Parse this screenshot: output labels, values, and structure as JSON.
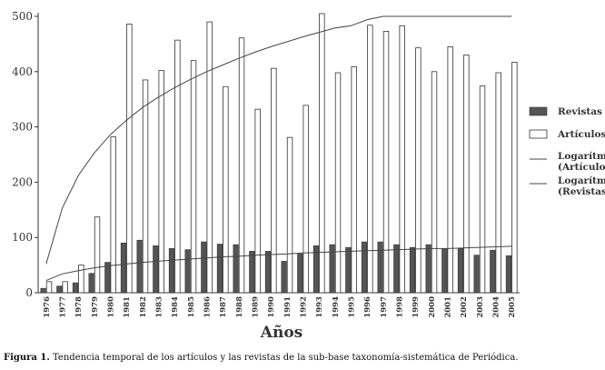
{
  "chart_data": {
    "type": "bar",
    "title": "",
    "xlabel": "Años",
    "ylabel": "",
    "ylim": [
      0,
      500
    ],
    "yticks": [
      0,
      100,
      200,
      300,
      400,
      500
    ],
    "categories": [
      "1976",
      "1977",
      "1978",
      "1979",
      "1980",
      "1981",
      "1982",
      "1983",
      "1984",
      "1985",
      "1986",
      "1987",
      "1988",
      "1989",
      "1990",
      "1991",
      "1992",
      "1993",
      "1994",
      "1995",
      "1996",
      "1997",
      "1998",
      "1999",
      "2000",
      "2001",
      "2002",
      "2003",
      "2004",
      "2005"
    ],
    "series": [
      {
        "name": "Revistas",
        "kind": "bar",
        "color": "#555555",
        "values": [
          8,
          12,
          18,
          35,
          55,
          90,
          95,
          85,
          80,
          78,
          92,
          88,
          87,
          75,
          75,
          57,
          70,
          85,
          87,
          82,
          92,
          92,
          87,
          82,
          87,
          80,
          80,
          68,
          77,
          67
        ]
      },
      {
        "name": "Artículos",
        "kind": "bar",
        "color": "#ffffff",
        "values": [
          20,
          20,
          50,
          137,
          282,
          486,
          385,
          402,
          457,
          420,
          490,
          373,
          461,
          332,
          406,
          281,
          339,
          505,
          398,
          409,
          484,
          473,
          483,
          443,
          400,
          445,
          430,
          374,
          398,
          417
        ]
      },
      {
        "name": "Logarítmica (Artículos)",
        "kind": "trend",
        "color": "#444444",
        "values": [
          52,
          153,
          212,
          253,
          286,
          312,
          335,
          354,
          371,
          386,
          400,
          412,
          424,
          435,
          445,
          454,
          463,
          471,
          479,
          483,
          494,
          501,
          507,
          513,
          519,
          525,
          530,
          535,
          540,
          545
        ]
      },
      {
        "name": "Logarítmica (Revistas)",
        "kind": "trend",
        "color": "#444444",
        "values": [
          22,
          34,
          40,
          45,
          49,
          52,
          55,
          57,
          59,
          61,
          63,
          65,
          66,
          68,
          69,
          70,
          72,
          73,
          74,
          75,
          76,
          77,
          78,
          79,
          80,
          80,
          81,
          82,
          83,
          84
        ]
      }
    ],
    "legend": {
      "placement": "right",
      "entries": [
        "Revistas",
        "Artículos",
        "Logarítmica (Artículos)",
        "Logarítmica (Revistas)"
      ]
    },
    "grid": false
  },
  "caption": {
    "label": "Figura 1.",
    "text": " Tendencia temporal de los artículos y las revistas de la sub-base taxonomía-sistemática de Periódica."
  }
}
